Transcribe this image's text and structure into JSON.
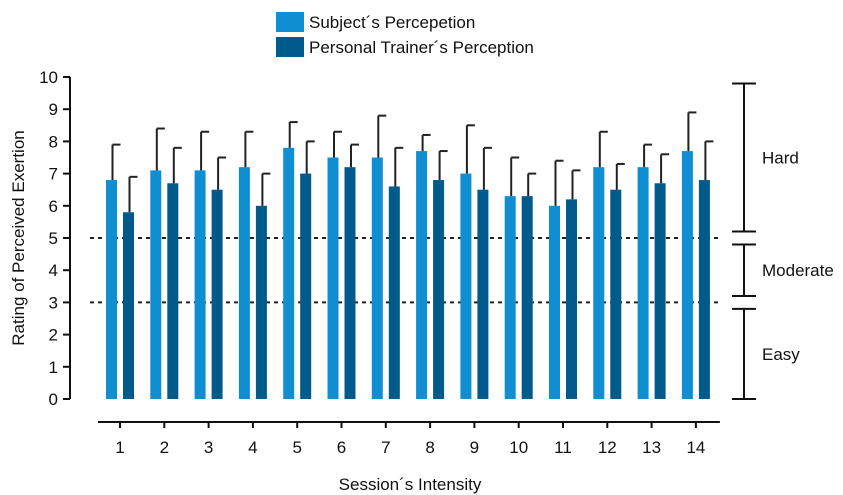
{
  "chart_data": {
    "type": "bar",
    "xlabel": "Session´s Intensity",
    "ylabel": "Rating of Perceived Exertion",
    "ylim": [
      0,
      10
    ],
    "yticks": [
      0,
      1,
      2,
      3,
      4,
      5,
      6,
      7,
      8,
      9,
      10
    ],
    "categories": [
      "1",
      "2",
      "3",
      "4",
      "5",
      "6",
      "7",
      "8",
      "9",
      "10",
      "11",
      "12",
      "13",
      "14"
    ],
    "legend_position": "top-center",
    "grid": false,
    "series": [
      {
        "name": "Subject´s Percepetion",
        "color": "#0f8fd1",
        "values": [
          6.8,
          7.1,
          7.1,
          7.2,
          7.8,
          7.5,
          7.5,
          7.7,
          7.0,
          6.3,
          6.0,
          7.2,
          7.2,
          7.7
        ],
        "errors": [
          1.1,
          1.3,
          1.2,
          1.1,
          0.8,
          0.8,
          1.3,
          0.5,
          1.5,
          1.2,
          1.4,
          1.1,
          0.7,
          1.2
        ]
      },
      {
        "name": "Personal Trainer´s Perception",
        "color": "#005a8c",
        "values": [
          5.8,
          6.7,
          6.5,
          6.0,
          7.0,
          7.2,
          6.6,
          6.8,
          6.5,
          6.3,
          6.2,
          6.5,
          6.7,
          6.8
        ],
        "errors": [
          1.1,
          1.1,
          1.0,
          1.0,
          1.0,
          0.7,
          1.2,
          0.9,
          1.3,
          0.7,
          0.9,
          0.8,
          0.9,
          1.2
        ]
      }
    ],
    "reference_lines": [
      {
        "y": 5,
        "style": "dotted"
      },
      {
        "y": 3,
        "style": "dotted"
      }
    ],
    "zones": [
      {
        "label": "Easy",
        "from": 0,
        "to": 3
      },
      {
        "label": "Moderate",
        "from": 3,
        "to": 5
      },
      {
        "label": "Hard",
        "from": 5,
        "to": 10
      }
    ]
  }
}
